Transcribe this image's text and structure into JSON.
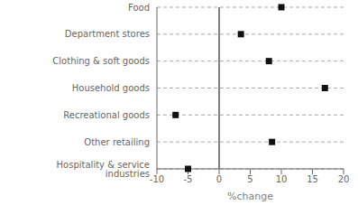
{
  "chart_data": {
    "type": "dot",
    "orientation": "horizontal",
    "categories": [
      "Food",
      "Department stores",
      "Clothing & soft goods",
      "Household goods",
      "Recreational goods",
      "Other retailing",
      "Hospitality & service industries"
    ],
    "values": [
      10,
      3.5,
      8,
      17,
      -7,
      8.5,
      -5
    ],
    "xlim": [
      -10,
      20
    ],
    "xticks": [
      -10,
      -5,
      0,
      5,
      10,
      15,
      20
    ],
    "xlabel": "%change",
    "color": "#111111",
    "marker": "square",
    "grid": true
  }
}
